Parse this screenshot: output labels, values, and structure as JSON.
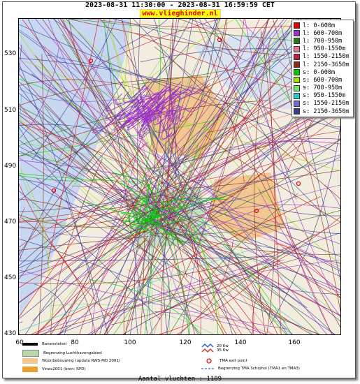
{
  "header": {
    "title": "2023-08-31 11:30:00 - 2023-08-31 16:59:59 CET",
    "url": "www.vliegh‍inder.nl"
  },
  "axes": {
    "y_ticks": [
      "530",
      "510",
      "490",
      "470",
      "450",
      "430"
    ],
    "x_ticks": [
      "60",
      "80",
      "100",
      "120",
      "140",
      "160"
    ]
  },
  "legend": {
    "items": [
      {
        "label": "l: 0-600m",
        "color": "#e00000"
      },
      {
        "label": "l: 600-700m",
        "color": "#9b30c8"
      },
      {
        "label": "l: 700-950m",
        "color": "#2a7a1a"
      },
      {
        "label": "l: 950-1550m",
        "color": "#e07890"
      },
      {
        "label": "l: 1550-2150m",
        "color": "#c02040"
      },
      {
        "label": "l: 2150-3650m",
        "color": "#8b2a10"
      },
      {
        "label": "s: 0-600m",
        "color": "#00cc00"
      },
      {
        "label": "s: 600-700m",
        "color": "#9be000"
      },
      {
        "label": "s: 700-950m",
        "color": "#70e070"
      },
      {
        "label": "s: 950-1550m",
        "color": "#30c8c8"
      },
      {
        "label": "s: 1550-2150m",
        "color": "#6a6ad8"
      },
      {
        "label": "s: 2150-3650m",
        "color": "#3a3a90"
      }
    ]
  },
  "bottom_legend": {
    "banenstelsel": "Banenstelsel",
    "begrenzing": "Begrenzing Luchthavengebied",
    "woonbebouwing": "Woonbebouwing (update RWS-MD 2001)",
    "vinex": "Vinex2001 (bron: RPD)",
    "kw20": "20 Kw",
    "kw35": "35 Kw",
    "tma_exit": "TMA exit point",
    "tma_begrenzing": "Begrenzing TMA Schiphol  (TMA1 en TMA3)"
  },
  "footer": {
    "count": "Aantal vluchten : 1109"
  }
}
